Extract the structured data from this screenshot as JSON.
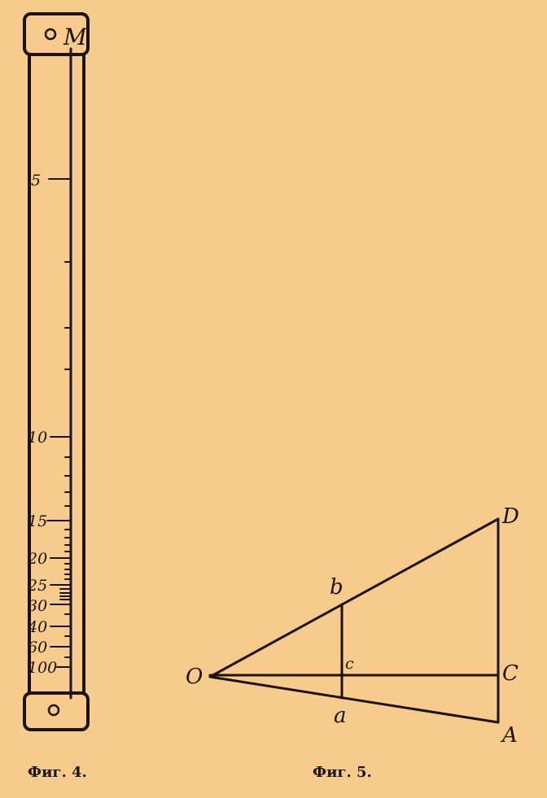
{
  "figure4": {
    "caption": "Фиг. 4.",
    "top_mark": "M",
    "scale_labels": [
      "5",
      "10",
      "15",
      "20",
      "25",
      "30",
      "40",
      "60",
      "100"
    ]
  },
  "figure5": {
    "caption": "Фиг. 5.",
    "points": {
      "O": "O",
      "A": "A",
      "C": "C",
      "D": "D",
      "a": "a",
      "b": "b",
      "c": "c"
    }
  },
  "colors": {
    "paper": "#f6cb8c",
    "ink": "#1a120b"
  }
}
